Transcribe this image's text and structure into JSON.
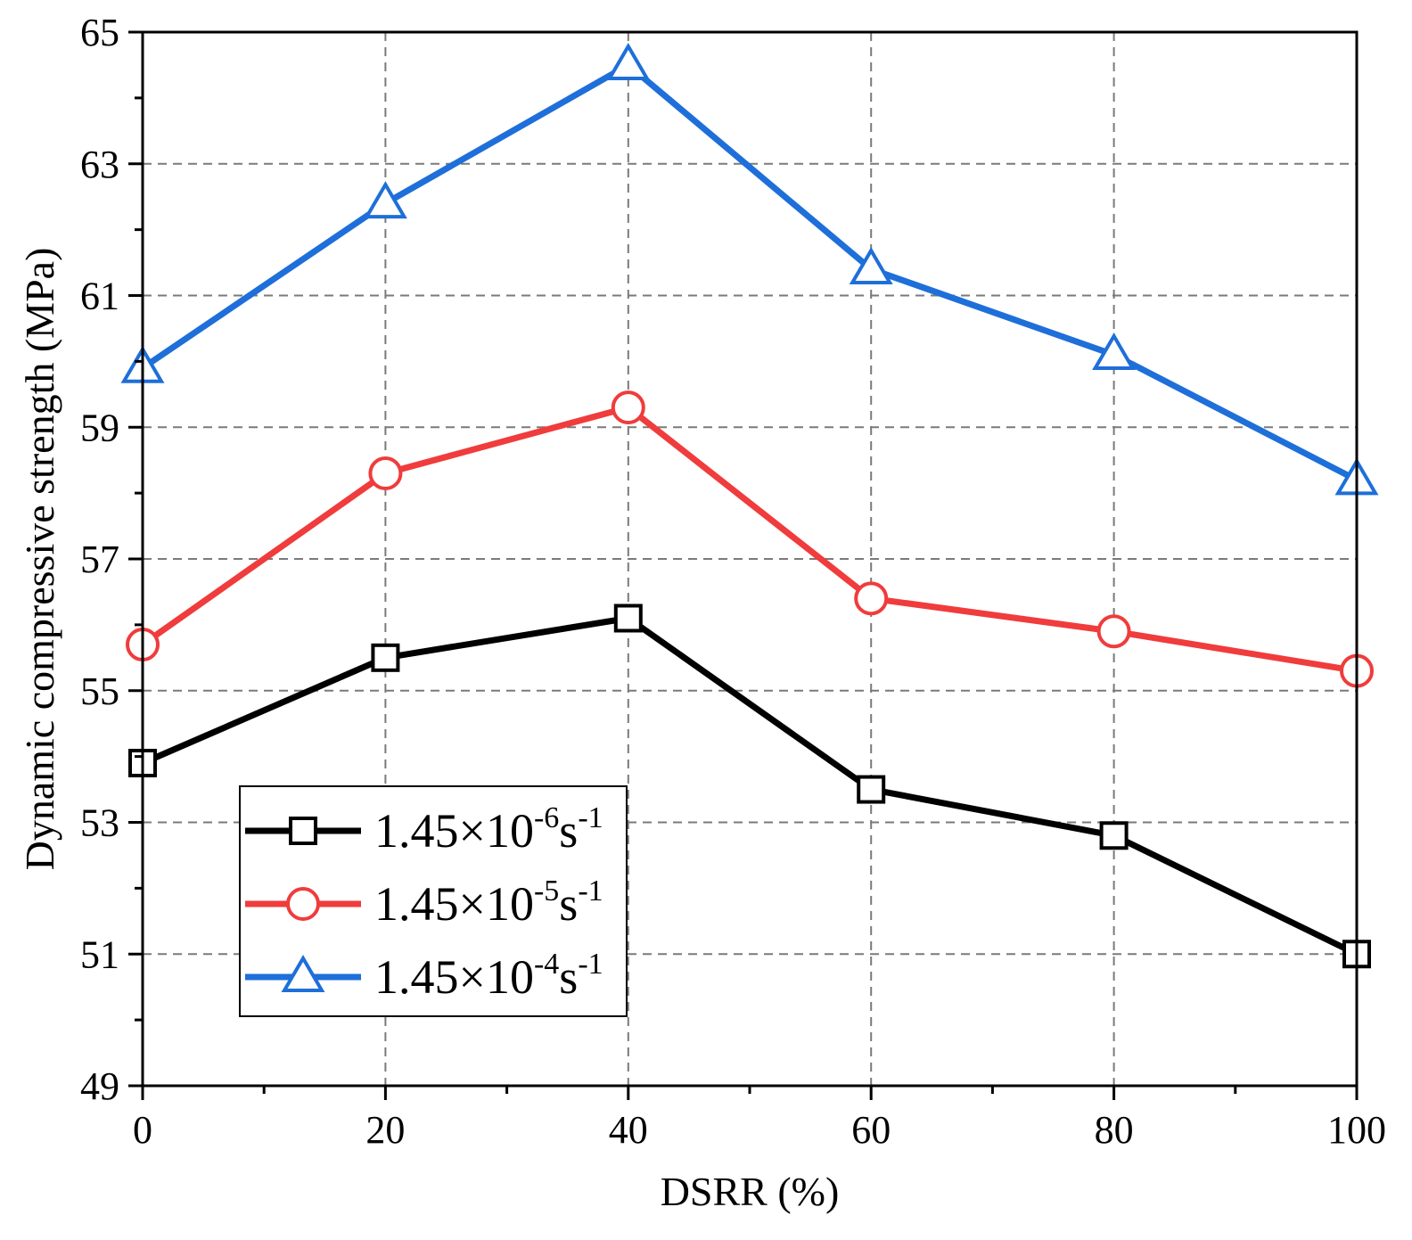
{
  "chart_data": {
    "type": "line",
    "title": "",
    "xlabel": "DSRR (%)",
    "ylabel": "Dynamic compressive strength (MPa)",
    "xlim": [
      0,
      100
    ],
    "ylim": [
      49,
      65
    ],
    "x_ticks": [
      0,
      20,
      40,
      60,
      80,
      100
    ],
    "y_ticks": [
      49,
      51,
      53,
      55,
      57,
      59,
      61,
      63,
      65
    ],
    "x": [
      0,
      20,
      40,
      60,
      80,
      100
    ],
    "grid": true,
    "legend_position": "bottom-left",
    "series": [
      {
        "name": "1.45×10-6s-1",
        "label_base": "1.45×10",
        "label_exp": "-6",
        "label_unit": "s",
        "label_unit_exp": "-1",
        "color": "#000000",
        "marker": "square",
        "values": [
          53.9,
          55.5,
          56.1,
          53.5,
          52.8,
          51.0
        ]
      },
      {
        "name": "1.45×10-5s-1",
        "label_base": "1.45×10",
        "label_exp": "-5",
        "label_unit": "s",
        "label_unit_exp": "-1",
        "color": "#f03c3c",
        "marker": "circle",
        "values": [
          55.7,
          58.3,
          59.3,
          56.4,
          55.9,
          55.3
        ]
      },
      {
        "name": "1.45×10-4s-1",
        "label_base": "1.45×10",
        "label_exp": "-4",
        "label_unit": "s",
        "label_unit_exp": "-1",
        "color": "#1e6fd9",
        "marker": "triangle",
        "values": [
          59.9,
          62.4,
          64.5,
          61.4,
          60.1,
          58.2
        ]
      }
    ]
  }
}
